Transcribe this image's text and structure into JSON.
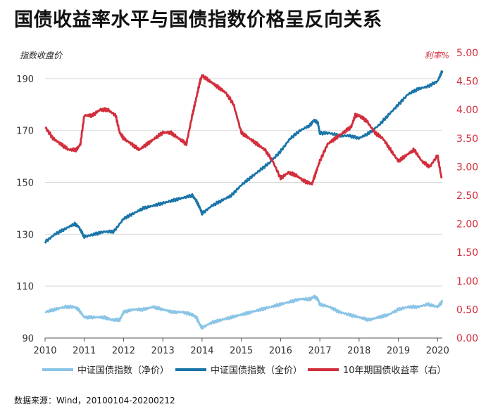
{
  "title": "国债收益率水平与国债指数价格呈反向关系",
  "source": "数据来源：Wind，20100104-20200212",
  "colors": {
    "net_price": "#8ac4e6",
    "full_price": "#1a75a8",
    "yield": "#d22e3c",
    "grid": "#d9d9d9",
    "axis": "#555555",
    "text": "#333333"
  },
  "chart_data": {
    "type": "line",
    "title": "国债收益率水平与国债指数价格呈反向关系",
    "left_axis": {
      "label": "指数收盘价",
      "ylim": [
        90,
        200
      ],
      "ticks": [
        90,
        110,
        130,
        150,
        170,
        190
      ],
      "tick_labels": [
        "90",
        "110",
        "130",
        "150",
        "170",
        "190"
      ]
    },
    "right_axis": {
      "label": "利率%",
      "ylim": [
        0,
        5
      ],
      "ticks": [
        0,
        0.5,
        1,
        1.5,
        2,
        2.5,
        3,
        3.5,
        4,
        4.5,
        5
      ],
      "tick_labels": [
        "0.00",
        "0.50",
        "1.00",
        "1.50",
        "2.00",
        "2.50",
        "3.00",
        "3.50",
        "4.00",
        "4.50",
        "5.00"
      ]
    },
    "x_axis": {
      "xlim": [
        2010.0,
        2020.12
      ],
      "ticks": [
        2010,
        2011,
        2012,
        2013,
        2014,
        2015,
        2016,
        2017,
        2018,
        2019,
        2020
      ],
      "tick_labels": [
        "2010",
        "2011",
        "2012",
        "2013",
        "2014",
        "2015",
        "2016",
        "2017",
        "2018",
        "2019",
        "2020"
      ]
    },
    "grid": "horizontal",
    "legend_position": "bottom",
    "series": [
      {
        "name": "中证国债指数（净价）",
        "axis": "left",
        "color": "#8ac4e6",
        "x": [
          2010.0,
          2010.25,
          2010.5,
          2010.75,
          2010.85,
          2011.0,
          2011.25,
          2011.5,
          2011.7,
          2011.9,
          2012.0,
          2012.25,
          2012.5,
          2012.75,
          2013.0,
          2013.25,
          2013.5,
          2013.75,
          2013.85,
          2013.95,
          2014.0,
          2014.25,
          2014.5,
          2014.75,
          2015.0,
          2015.25,
          2015.5,
          2015.75,
          2016.0,
          2016.25,
          2016.5,
          2016.75,
          2016.85,
          2016.95,
          2017.0,
          2017.25,
          2017.5,
          2017.75,
          2018.0,
          2018.25,
          2018.5,
          2018.75,
          2019.0,
          2019.25,
          2019.5,
          2019.75,
          2020.0,
          2020.12
        ],
        "y": [
          100,
          101,
          102,
          102,
          101,
          98,
          98,
          98,
          97,
          97,
          100,
          101,
          101,
          102,
          101,
          100,
          100,
          99,
          98,
          95,
          94,
          96,
          97,
          98,
          99,
          100,
          101,
          102,
          103,
          104,
          105,
          105,
          106,
          105,
          103,
          102,
          100,
          99,
          98,
          97,
          98,
          99,
          101,
          102,
          102,
          103,
          102,
          104
        ]
      },
      {
        "name": "中证国债指数（全价）",
        "axis": "left",
        "color": "#1a75a8",
        "x": [
          2010.0,
          2010.25,
          2010.5,
          2010.75,
          2010.85,
          2011.0,
          2011.25,
          2011.5,
          2011.75,
          2012.0,
          2012.25,
          2012.5,
          2012.75,
          2013.0,
          2013.25,
          2013.5,
          2013.75,
          2013.85,
          2013.95,
          2014.0,
          2014.25,
          2014.5,
          2014.75,
          2015.0,
          2015.25,
          2015.5,
          2015.75,
          2016.0,
          2016.25,
          2016.5,
          2016.75,
          2016.85,
          2016.95,
          2017.0,
          2017.25,
          2017.5,
          2017.75,
          2018.0,
          2018.25,
          2018.5,
          2018.75,
          2019.0,
          2019.25,
          2019.5,
          2019.75,
          2020.0,
          2020.12
        ],
        "y": [
          127,
          130,
          132,
          134,
          133,
          129,
          130,
          131,
          131,
          136,
          138,
          140,
          141,
          142,
          143,
          144,
          145,
          143,
          140,
          138,
          141,
          143,
          145,
          149,
          152,
          155,
          158,
          162,
          167,
          170,
          172,
          174,
          173,
          169,
          169,
          168,
          168,
          167,
          169,
          172,
          176,
          180,
          184,
          186,
          187,
          189,
          193
        ]
      },
      {
        "name": "10年期国债收益率（右）",
        "axis": "right",
        "color": "#d22e3c",
        "x": [
          2010.0,
          2010.2,
          2010.4,
          2010.6,
          2010.8,
          2010.9,
          2011.0,
          2011.2,
          2011.4,
          2011.6,
          2011.8,
          2011.9,
          2012.0,
          2012.2,
          2012.4,
          2012.6,
          2012.8,
          2013.0,
          2013.2,
          2013.4,
          2013.6,
          2013.75,
          2013.85,
          2013.95,
          2014.0,
          2014.2,
          2014.4,
          2014.6,
          2014.8,
          2015.0,
          2015.2,
          2015.4,
          2015.6,
          2015.8,
          2016.0,
          2016.2,
          2016.4,
          2016.6,
          2016.8,
          2016.9,
          2017.0,
          2017.2,
          2017.4,
          2017.6,
          2017.8,
          2017.9,
          2018.0,
          2018.2,
          2018.4,
          2018.6,
          2018.8,
          2019.0,
          2019.2,
          2019.4,
          2019.6,
          2019.8,
          2020.0,
          2020.1
        ],
        "y": [
          3.7,
          3.5,
          3.4,
          3.3,
          3.3,
          3.4,
          3.9,
          3.9,
          4.0,
          4.0,
          3.9,
          3.6,
          3.5,
          3.4,
          3.3,
          3.4,
          3.5,
          3.6,
          3.6,
          3.5,
          3.4,
          3.9,
          4.2,
          4.5,
          4.6,
          4.5,
          4.4,
          4.3,
          4.1,
          3.6,
          3.5,
          3.4,
          3.3,
          3.1,
          2.8,
          2.9,
          2.85,
          2.75,
          2.7,
          2.9,
          3.1,
          3.4,
          3.5,
          3.6,
          3.7,
          3.9,
          3.9,
          3.8,
          3.6,
          3.5,
          3.3,
          3.1,
          3.2,
          3.3,
          3.1,
          3.0,
          3.2,
          2.8
        ]
      }
    ]
  }
}
